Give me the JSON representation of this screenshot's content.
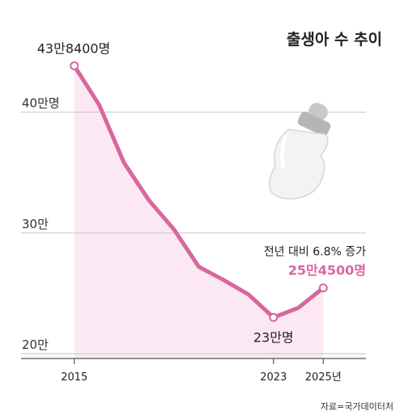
{
  "chart_data": {
    "type": "area",
    "title": "출생아 수 추이",
    "xlabel": "",
    "ylabel": "",
    "x": [
      2015,
      2016,
      2017,
      2018,
      2019,
      2020,
      2021,
      2022,
      2023,
      2024,
      2025
    ],
    "y": [
      43.84,
      40.6,
      35.8,
      32.7,
      30.3,
      27.2,
      26.1,
      24.9,
      23.0,
      23.8,
      25.45
    ],
    "x_tick_labels": [
      "2015",
      "2023",
      "2025년"
    ],
    "x_tick_values": [
      2015,
      2023,
      2025
    ],
    "y_tick_labels": [
      "40만명",
      "30만",
      "20만"
    ],
    "y_tick_values": [
      40,
      30,
      20
    ],
    "ylim": [
      19.2,
      44.8
    ],
    "xlim": [
      2014,
      2026
    ],
    "grid": true,
    "annotations": {
      "start_value": "43만8400명",
      "min_value": "23만명",
      "end_note": "전년 대비 6.8% 증가",
      "end_value": "25만4500명"
    },
    "line_color": "#d9669f",
    "fill_color": "#fce8f3"
  },
  "source": "자료=국가데이터처",
  "icon": "baby-bottle-icon"
}
